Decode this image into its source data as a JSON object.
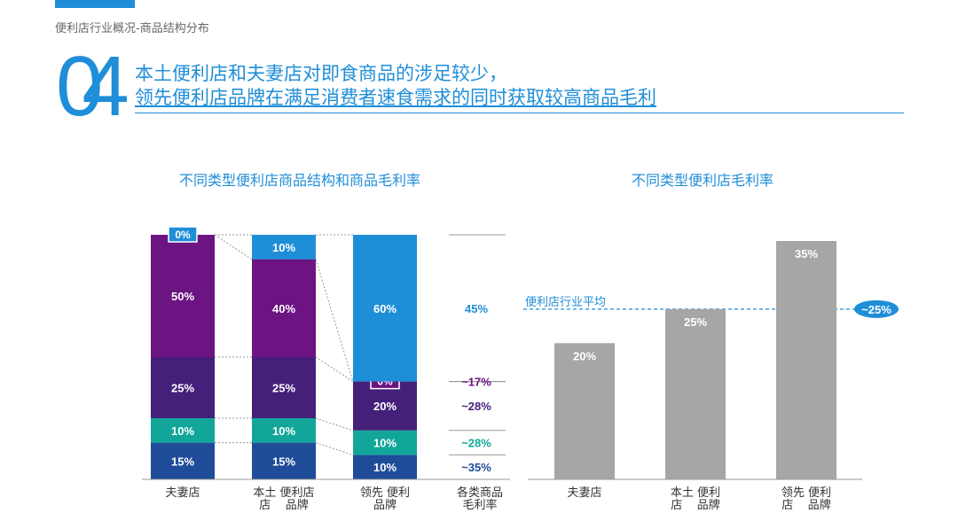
{
  "breadcrumb": "便利店行业概况-商品结构分布",
  "section_number": "04",
  "headline": {
    "line1": "本土便利店和夫妻店对即食商品的涉足较少，",
    "line2": "领先便利店品牌在满足消费者速食需求的同时获取较高商品毛利"
  },
  "colors": {
    "accent": "#1f8ed8",
    "light_blue": "#1f8ed8",
    "purple": "#6b1482",
    "dark_purple": "#44207a",
    "teal": "#12a69a",
    "navy": "#1f4c99",
    "gray_bar": "#a6a6a6"
  },
  "chart_data": [
    {
      "type": "bar",
      "stacked": true,
      "title": "不同类型便利店商品结构和商品毛利率",
      "categories": [
        "夫妻店",
        "本土 便利店 品牌",
        "领先 便利店 品牌"
      ],
      "x_labels": [
        {
          "line1": "夫妻店",
          "line2": ""
        },
        {
          "line1": "本土 便利店",
          "line2": "店    品牌"
        },
        {
          "line1": "领先 便利",
          "line2": "品牌"
        }
      ],
      "series": [
        {
          "values": [
            15,
            15,
            10
          ],
          "labels": [
            "15%",
            "15%",
            "10%"
          ],
          "margin": "~35%",
          "color": "#1f4c99",
          "margin_color": "#1f4c99"
        },
        {
          "values": [
            10,
            10,
            10
          ],
          "labels": [
            "10%",
            "10%",
            "10%"
          ],
          "margin": "~28%",
          "color": "#12a69a",
          "margin_color": "#12a69a"
        },
        {
          "values": [
            25,
            25,
            20
          ],
          "labels": [
            "25%",
            "25%",
            "20%"
          ],
          "margin": "~28%",
          "color": "#44207a",
          "margin_color": "#44207a"
        },
        {
          "values": [
            50,
            40,
            0
          ],
          "labels": [
            "50%",
            "40%",
            "0%"
          ],
          "margin": "~17%",
          "color": "#6b1482",
          "margin_color": "#6b1482"
        },
        {
          "values": [
            0,
            10,
            60
          ],
          "labels": [
            "0%",
            "10%",
            "60%"
          ],
          "margin": "45%",
          "color": "#1f8ed8",
          "margin_color": "#1f8ed8"
        }
      ],
      "margin_column_label": {
        "line1": "各类商品",
        "line2": "毛利率"
      },
      "ylim": [
        0,
        100
      ]
    },
    {
      "type": "bar",
      "title": "不同类型便利店毛利率",
      "categories": [
        "夫妻店",
        "本土 便利 店 品牌",
        "领先 便利 店 品牌"
      ],
      "x_labels": [
        {
          "line1": "夫妻店",
          "line2": ""
        },
        {
          "line1": "本土 便利",
          "line2": "店    品牌"
        },
        {
          "line1": "领先 便利",
          "line2": "店    品牌"
        }
      ],
      "values": [
        20,
        25,
        35
      ],
      "value_labels": [
        "20%",
        "25%",
        "35%"
      ],
      "reference_line": {
        "value": 25,
        "label": "便利店行业平均",
        "badge": "~25%"
      },
      "ylim": [
        0,
        35
      ]
    }
  ]
}
